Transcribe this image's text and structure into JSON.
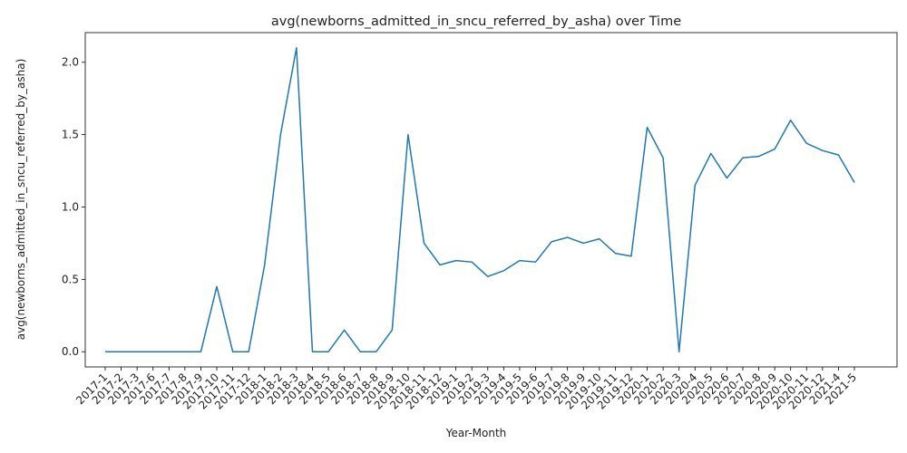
{
  "chart_data": {
    "type": "line",
    "title": "avg(newborns_admitted_in_sncu_referred_by_asha) over Time",
    "xlabel": "Year-Month",
    "ylabel": "avg(newborns_admitted_in_sncu_referred_by_asha)",
    "ylim": [
      -0.105,
      2.205
    ],
    "yticks": [
      0.0,
      0.5,
      1.0,
      1.5,
      2.0
    ],
    "ytick_labels": [
      "0.0",
      "0.5",
      "1.0",
      "1.5",
      "2.0"
    ],
    "grid": false,
    "legend": "none",
    "line_color": "#1f77b4",
    "categories": [
      "2017-1",
      "2017-2",
      "2017-3",
      "2017-6",
      "2017-7",
      "2017-8",
      "2017-9",
      "2017-10",
      "2017-11",
      "2017-12",
      "2018-1",
      "2018-2",
      "2018-3",
      "2018-4",
      "2018-5",
      "2018-6",
      "2018-7",
      "2018-8",
      "2018-9",
      "2018-10",
      "2018-11",
      "2018-12",
      "2019-1",
      "2019-2",
      "2019-3",
      "2019-4",
      "2019-5",
      "2019-6",
      "2019-7",
      "2019-8",
      "2019-9",
      "2019-10",
      "2019-11",
      "2019-12",
      "2020-1",
      "2020-2",
      "2020-3",
      "2020-4",
      "2020-5",
      "2020-6",
      "2020-7",
      "2020-8",
      "2020-9",
      "2020-10",
      "2020-11",
      "2020-12",
      "2021-4",
      "2021-5"
    ],
    "series": [
      {
        "values": [
          0,
          0,
          0,
          0,
          0,
          0,
          0,
          0.45,
          0,
          0,
          0.6,
          1.5,
          2.1,
          0,
          0,
          0.15,
          0,
          0,
          0.15,
          1.5,
          0.75,
          0.6,
          0.63,
          0.62,
          0.52,
          0.56,
          0.63,
          0.62,
          0.76,
          0.79,
          0.75,
          0.78,
          0.68,
          0.66,
          1.55,
          1.34,
          0,
          1.15,
          1.37,
          1.2,
          1.34,
          1.35,
          1.4,
          1.6,
          1.44,
          1.39,
          1.36,
          1.17
        ]
      }
    ]
  }
}
